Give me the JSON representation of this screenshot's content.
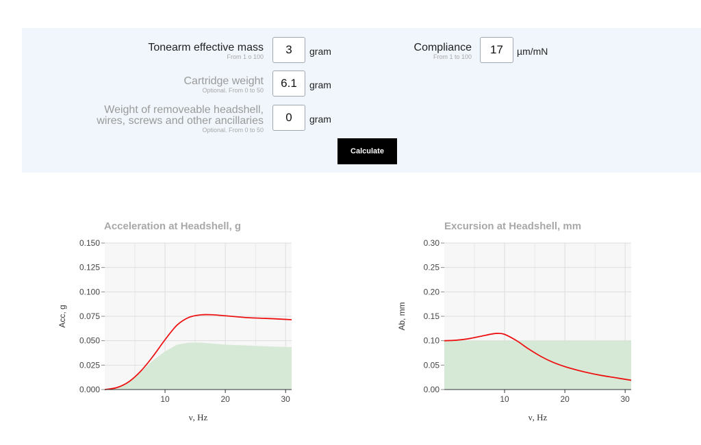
{
  "form": {
    "tonearm": {
      "label": "Tonearm effective mass",
      "hint": "From 1 o 100",
      "value": "3",
      "unit": "gram"
    },
    "cartridge": {
      "label": "Cartridge weight",
      "hint": "Optional. From 0 to 50",
      "value": "6.1",
      "unit": "gram"
    },
    "headshell": {
      "label_line1": "Weight of removeable headshell,",
      "label_line2": "wires, screws and other ancillaries",
      "hint": "Optional. From 0 to 50",
      "value": "0",
      "unit": "gram"
    },
    "compliance": {
      "label": "Compliance",
      "hint": "From 1 to 100",
      "value": "17",
      "unit": "µm/mN"
    },
    "calculate_label": "Calculate"
  },
  "colors": {
    "panel_bg": "#f0f6fc",
    "curve": "#ee1111",
    "fill": "#d6e9d6",
    "plot_bg": "#f7f7f7",
    "grid": "#dddddd"
  },
  "chart_data": [
    {
      "type": "area",
      "title": "Acceleration at Headshell, g",
      "xlabel": "ν, Hz",
      "ylabel": "Acc, g",
      "xlim": [
        0,
        31
      ],
      "ylim": [
        0,
        0.15
      ],
      "xticks": [
        10,
        20,
        30
      ],
      "yticks": [
        0.0,
        0.025,
        0.05,
        0.075,
        0.1,
        0.125,
        0.15
      ],
      "ytick_labels": [
        "0.000",
        "0.025",
        "0.050",
        "0.075",
        "0.100",
        "0.125",
        "0.150"
      ],
      "grid": true,
      "series": [
        {
          "kind": "line",
          "x": [
            0,
            2,
            4,
            6,
            8,
            10,
            12,
            14,
            16,
            18,
            20,
            22,
            24,
            26,
            28,
            31
          ],
          "y": [
            0,
            0.002,
            0.008,
            0.019,
            0.034,
            0.051,
            0.066,
            0.074,
            0.0765,
            0.0765,
            0.0755,
            0.0745,
            0.0735,
            0.073,
            0.0725,
            0.0715
          ]
        },
        {
          "kind": "area",
          "x": [
            0,
            2,
            4,
            6,
            8,
            10,
            12,
            14,
            16,
            18,
            20,
            22,
            24,
            26,
            28,
            31
          ],
          "y": [
            0,
            0.002,
            0.008,
            0.018,
            0.03,
            0.039,
            0.046,
            0.048,
            0.048,
            0.047,
            0.046,
            0.0455,
            0.045,
            0.0445,
            0.044,
            0.0435
          ]
        }
      ]
    },
    {
      "type": "area",
      "title": "Excursion at Headshell, mm",
      "xlabel": "ν, Hz",
      "ylabel": "Ab, mm",
      "xlim": [
        0,
        31
      ],
      "ylim": [
        0,
        0.3
      ],
      "xticks": [
        10,
        20,
        30
      ],
      "yticks": [
        0,
        0.05,
        0.1,
        0.15,
        0.2,
        0.25,
        0.3
      ],
      "ytick_labels": [
        "0.00",
        "0.05",
        "0.10",
        "0.15",
        "0.20",
        "0.25",
        "0.30"
      ],
      "grid": true,
      "series": [
        {
          "kind": "line",
          "x": [
            0,
            2,
            4,
            6,
            8,
            9,
            10,
            12,
            14,
            16,
            18,
            20,
            22,
            24,
            26,
            28,
            31
          ],
          "y": [
            0.1,
            0.101,
            0.104,
            0.109,
            0.114,
            0.115,
            0.113,
            0.1,
            0.083,
            0.068,
            0.056,
            0.047,
            0.04,
            0.034,
            0.029,
            0.025,
            0.019
          ]
        },
        {
          "kind": "area",
          "x": [
            0,
            31
          ],
          "y": [
            0.1,
            0.1
          ]
        }
      ]
    }
  ]
}
